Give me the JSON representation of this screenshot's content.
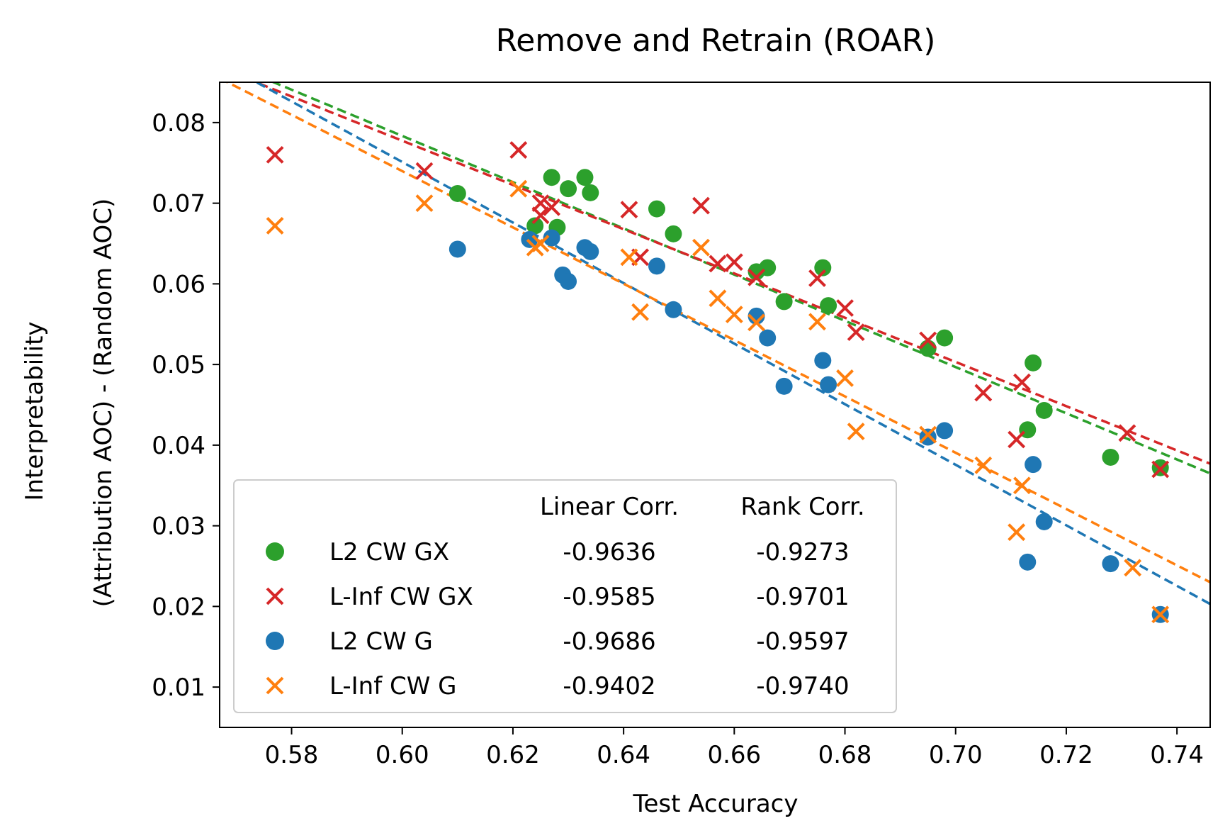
{
  "chart_data": {
    "type": "scatter",
    "title": "Remove and Retrain (ROAR)",
    "xlabel": "Test Accuracy",
    "ylabel_line1": "Interpretability",
    "ylabel_line2": "(Attribution AOC) - (Random AOC)",
    "xlim": [
      0.567,
      0.746
    ],
    "ylim": [
      0.005,
      0.085
    ],
    "xticks": [
      0.58,
      0.6,
      0.62,
      0.64,
      0.66,
      0.68,
      0.7,
      0.72,
      0.74
    ],
    "xtick_labels": [
      "0.58",
      "0.60",
      "0.62",
      "0.64",
      "0.66",
      "0.68",
      "0.70",
      "0.72",
      "0.74"
    ],
    "yticks": [
      0.01,
      0.02,
      0.03,
      0.04,
      0.05,
      0.06,
      0.07,
      0.08
    ],
    "ytick_labels": [
      "0.01",
      "0.02",
      "0.03",
      "0.04",
      "0.05",
      "0.06",
      "0.07",
      "0.08"
    ],
    "grid": false,
    "legend_position": "lower-left",
    "legend_headers": {
      "linear": "Linear Corr.",
      "rank": "Rank Corr."
    },
    "series": [
      {
        "name": "L2 CW GX",
        "marker": "circle",
        "color": "#2ca02c",
        "linear_corr": "-0.9636",
        "rank_corr": "-0.9273",
        "trend": [
          [
            0.567,
            0.0878
          ],
          [
            0.746,
            0.0365
          ]
        ],
        "points": [
          [
            0.61,
            0.0712
          ],
          [
            0.627,
            0.0732
          ],
          [
            0.63,
            0.0718
          ],
          [
            0.633,
            0.0732
          ],
          [
            0.634,
            0.0713
          ],
          [
            0.624,
            0.0672
          ],
          [
            0.628,
            0.067
          ],
          [
            0.646,
            0.0693
          ],
          [
            0.649,
            0.0662
          ],
          [
            0.664,
            0.0615
          ],
          [
            0.666,
            0.062
          ],
          [
            0.669,
            0.0578
          ],
          [
            0.676,
            0.062
          ],
          [
            0.677,
            0.0573
          ],
          [
            0.695,
            0.052
          ],
          [
            0.698,
            0.0533
          ],
          [
            0.714,
            0.0502
          ],
          [
            0.713,
            0.0419
          ],
          [
            0.716,
            0.0443
          ],
          [
            0.728,
            0.0385
          ],
          [
            0.737,
            0.0372
          ]
        ]
      },
      {
        "name": "L-Inf CW GX",
        "marker": "x",
        "color": "#d62728",
        "linear_corr": "-0.9585",
        "rank_corr": "-0.9701",
        "trend": [
          [
            0.567,
            0.0868
          ],
          [
            0.746,
            0.0377
          ]
        ],
        "points": [
          [
            0.577,
            0.076
          ],
          [
            0.604,
            0.074
          ],
          [
            0.621,
            0.0766
          ],
          [
            0.625,
            0.07
          ],
          [
            0.625,
            0.0685
          ],
          [
            0.627,
            0.0695
          ],
          [
            0.641,
            0.0692
          ],
          [
            0.643,
            0.0633
          ],
          [
            0.654,
            0.0697
          ],
          [
            0.657,
            0.0625
          ],
          [
            0.66,
            0.0627
          ],
          [
            0.664,
            0.0608
          ],
          [
            0.675,
            0.0607
          ],
          [
            0.68,
            0.057
          ],
          [
            0.682,
            0.054
          ],
          [
            0.695,
            0.053
          ],
          [
            0.705,
            0.0465
          ],
          [
            0.712,
            0.0478
          ],
          [
            0.711,
            0.0407
          ],
          [
            0.731,
            0.0415
          ],
          [
            0.737,
            0.037
          ]
        ]
      },
      {
        "name": "L2 CW G",
        "marker": "circle",
        "color": "#1f77b4",
        "linear_corr": "-0.9686",
        "rank_corr": "-0.9597",
        "trend": [
          [
            0.567,
            0.0875
          ],
          [
            0.746,
            0.0203
          ]
        ],
        "points": [
          [
            0.61,
            0.0643
          ],
          [
            0.623,
            0.0655
          ],
          [
            0.627,
            0.0657
          ],
          [
            0.629,
            0.0611
          ],
          [
            0.63,
            0.0603
          ],
          [
            0.633,
            0.0645
          ],
          [
            0.634,
            0.064
          ],
          [
            0.646,
            0.0622
          ],
          [
            0.649,
            0.0568
          ],
          [
            0.664,
            0.056
          ],
          [
            0.666,
            0.0533
          ],
          [
            0.669,
            0.0473
          ],
          [
            0.676,
            0.0505
          ],
          [
            0.677,
            0.0475
          ],
          [
            0.695,
            0.041
          ],
          [
            0.698,
            0.0418
          ],
          [
            0.714,
            0.0376
          ],
          [
            0.716,
            0.0305
          ],
          [
            0.713,
            0.0255
          ],
          [
            0.728,
            0.0253
          ],
          [
            0.737,
            0.019
          ]
        ]
      },
      {
        "name": "L-Inf CW G",
        "marker": "x",
        "color": "#ff7f0e",
        "linear_corr": "-0.9402",
        "rank_corr": "-0.9740",
        "trend": [
          [
            0.567,
            0.0855
          ],
          [
            0.746,
            0.023
          ]
        ],
        "points": [
          [
            0.577,
            0.0672
          ],
          [
            0.604,
            0.07
          ],
          [
            0.621,
            0.0718
          ],
          [
            0.624,
            0.0645
          ],
          [
            0.625,
            0.065
          ],
          [
            0.641,
            0.0633
          ],
          [
            0.643,
            0.0565
          ],
          [
            0.654,
            0.0645
          ],
          [
            0.657,
            0.0582
          ],
          [
            0.66,
            0.0562
          ],
          [
            0.664,
            0.0552
          ],
          [
            0.675,
            0.0553
          ],
          [
            0.68,
            0.0483
          ],
          [
            0.682,
            0.0417
          ],
          [
            0.695,
            0.0413
          ],
          [
            0.705,
            0.0375
          ],
          [
            0.712,
            0.035
          ],
          [
            0.711,
            0.0292
          ],
          [
            0.732,
            0.0248
          ],
          [
            0.737,
            0.019
          ]
        ]
      }
    ]
  }
}
